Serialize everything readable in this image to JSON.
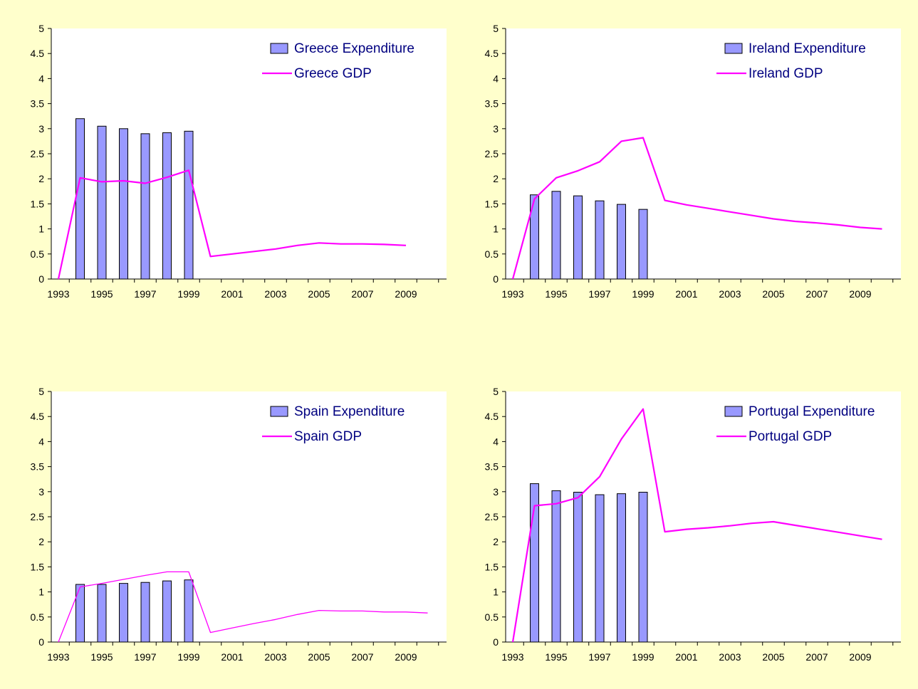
{
  "colors": {
    "page_background": "#ffffcc",
    "plot_background": "#ffffff",
    "bar_fill": "#9999ff",
    "bar_stroke": "#000000",
    "line": "#ff00ff",
    "legend_text": "#000080",
    "axis": "#000000"
  },
  "chart_data": [
    {
      "type": "bar",
      "title": "",
      "xlabel": "",
      "ylabel": "",
      "x": [
        1993,
        1994,
        1995,
        1996,
        1997,
        1998,
        1999,
        2000,
        2001,
        2002,
        2003,
        2004,
        2005,
        2006,
        2007,
        2008,
        2009
      ],
      "x_tick_labels": [
        "1993",
        "1995",
        "1997",
        "1999",
        "2001",
        "2003",
        "2005",
        "2007",
        "2009"
      ],
      "ylim": [
        0,
        5
      ],
      "y_tick_labels": [
        "0",
        "0.5",
        "1",
        "1.5",
        "2",
        "2.5",
        "3",
        "3.5",
        "4",
        "4.5",
        "5"
      ],
      "grid": false,
      "legend_position": "top-right",
      "series": [
        {
          "name": "Greece Expenditure",
          "type": "bar",
          "values": [
            null,
            3.2,
            3.05,
            3.0,
            2.9,
            2.92,
            2.95,
            null,
            null,
            null,
            null,
            null,
            null,
            null,
            null,
            null,
            null
          ]
        },
        {
          "name": "Greece GDP",
          "type": "line",
          "values": [
            0,
            2.02,
            1.94,
            1.96,
            1.91,
            2.03,
            2.17,
            0.45,
            0.5,
            0.55,
            0.6,
            0.67,
            0.72,
            0.7,
            0.7,
            0.69,
            0.67
          ]
        }
      ]
    },
    {
      "type": "bar",
      "title": "",
      "xlabel": "",
      "ylabel": "",
      "x": [
        1993,
        1994,
        1995,
        1996,
        1997,
        1998,
        1999,
        2000,
        2001,
        2002,
        2003,
        2004,
        2005,
        2006,
        2007,
        2008,
        2009,
        2010
      ],
      "x_tick_labels": [
        "1993",
        "1995",
        "1997",
        "1999",
        "2001",
        "2003",
        "2005",
        "2007",
        "2009"
      ],
      "ylim": [
        0,
        5
      ],
      "y_tick_labels": [
        "0",
        "0.5",
        "1",
        "1.5",
        "2",
        "2.5",
        "3",
        "3.5",
        "4",
        "4.5",
        "5"
      ],
      "grid": false,
      "legend_position": "top-right",
      "series": [
        {
          "name": "Ireland Expenditure",
          "type": "bar",
          "values": [
            null,
            1.68,
            1.75,
            1.66,
            1.56,
            1.49,
            1.39,
            null,
            null,
            null,
            null,
            null,
            null,
            null,
            null,
            null,
            null,
            null
          ]
        },
        {
          "name": "Ireland GDP",
          "type": "line",
          "values": [
            0,
            1.6,
            2.02,
            2.16,
            2.34,
            2.75,
            2.82,
            1.57,
            1.48,
            1.41,
            1.34,
            1.27,
            1.2,
            1.15,
            1.12,
            1.08,
            1.03,
            1.0
          ]
        }
      ]
    },
    {
      "type": "bar",
      "title": "",
      "xlabel": "",
      "ylabel": "",
      "x": [
        1993,
        1994,
        1995,
        1996,
        1997,
        1998,
        1999,
        2000,
        2001,
        2002,
        2003,
        2004,
        2005,
        2006,
        2007,
        2008,
        2009,
        2010
      ],
      "x_tick_labels": [
        "1993",
        "1995",
        "1997",
        "1999",
        "2001",
        "2003",
        "2005",
        "2007",
        "2009"
      ],
      "ylim": [
        0,
        5
      ],
      "y_tick_labels": [
        "0",
        "0.5",
        "1",
        "1.5",
        "2",
        "2.5",
        "3",
        "3.5",
        "4",
        "4.5",
        "5"
      ],
      "grid": false,
      "legend_position": "top-right",
      "series": [
        {
          "name": "Spain Expenditure",
          "type": "bar",
          "values": [
            null,
            1.15,
            1.15,
            1.17,
            1.19,
            1.22,
            1.24,
            null,
            null,
            null,
            null,
            null,
            null,
            null,
            null,
            null,
            null,
            null
          ]
        },
        {
          "name": "Spain GDP",
          "type": "line",
          "values": [
            0,
            1.1,
            1.17,
            1.25,
            1.33,
            1.4,
            1.4,
            0.19,
            0.28,
            0.37,
            0.45,
            0.55,
            0.63,
            0.62,
            0.62,
            0.6,
            0.6,
            0.58
          ]
        }
      ]
    },
    {
      "type": "bar",
      "title": "",
      "xlabel": "",
      "ylabel": "",
      "x": [
        1993,
        1994,
        1995,
        1996,
        1997,
        1998,
        1999,
        2000,
        2001,
        2002,
        2003,
        2004,
        2005,
        2006,
        2007,
        2008,
        2009,
        2010
      ],
      "x_tick_labels": [
        "1993",
        "1995",
        "1997",
        "1999",
        "2001",
        "2003",
        "2005",
        "2007",
        "2009"
      ],
      "ylim": [
        0,
        5
      ],
      "y_tick_labels": [
        "0",
        "0.5",
        "1",
        "1.5",
        "2",
        "2.5",
        "3",
        "3.5",
        "4",
        "4.5",
        "5"
      ],
      "grid": false,
      "legend_position": "top-right",
      "series": [
        {
          "name": "Portugal Expenditure",
          "type": "bar",
          "values": [
            null,
            3.16,
            3.02,
            2.99,
            2.94,
            2.96,
            2.99,
            null,
            null,
            null,
            null,
            null,
            null,
            null,
            null,
            null,
            null,
            null
          ]
        },
        {
          "name": "Portugal GDP",
          "type": "line",
          "values": [
            0,
            2.72,
            2.76,
            2.88,
            3.3,
            4.05,
            4.65,
            2.2,
            2.25,
            2.28,
            2.32,
            2.37,
            2.4,
            2.33,
            2.26,
            2.19,
            2.12,
            2.05
          ]
        }
      ]
    }
  ]
}
